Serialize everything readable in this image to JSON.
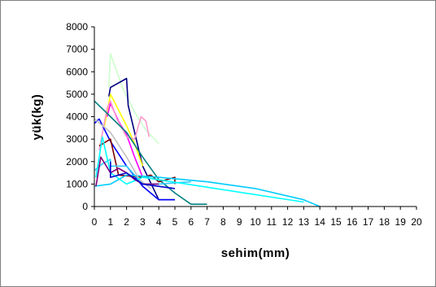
{
  "chart_data": {
    "type": "line",
    "title": "",
    "xlabel": "sehim(mm)",
    "ylabel": "yük(kg)",
    "xlim": [
      0,
      20
    ],
    "ylim": [
      0,
      8000
    ],
    "x_ticks": [
      "0",
      "1",
      "2",
      "3",
      "4",
      "5",
      "6",
      "7",
      "8",
      "9",
      "10",
      "11",
      "12",
      "13",
      "14",
      "15",
      "16",
      "17",
      "18",
      "19",
      "20"
    ],
    "y_ticks": [
      "0",
      "1000",
      "2000",
      "3000",
      "4000",
      "5000",
      "6000",
      "7000",
      "8000"
    ],
    "grid": false,
    "legend": "none",
    "series": [
      {
        "color": "#ccffcc",
        "x": [
          0.9,
          1.0,
          1.8,
          2.5,
          3.2,
          4.0
        ],
        "y": [
          5300,
          6800,
          5200,
          4200,
          3400,
          2800
        ]
      },
      {
        "color": "#000080",
        "x": [
          0.9,
          1.0,
          2.0,
          2.1,
          3.0,
          4.0,
          5.0
        ],
        "y": [
          4900,
          5300,
          5700,
          4500,
          1800,
          300,
          300
        ]
      },
      {
        "color": "#ffff00",
        "x": [
          0.6,
          1.0,
          1.5,
          2.0,
          2.5,
          3.0
        ],
        "y": [
          3500,
          5000,
          4300,
          3600,
          2800,
          1800
        ]
      },
      {
        "color": "#ff00ff",
        "x": [
          0.8,
          1.0,
          1.5,
          2.0,
          2.5,
          3.0
        ],
        "y": [
          4000,
          4600,
          3800,
          3200,
          2200,
          1300
        ]
      },
      {
        "color": "#ff99cc",
        "x": [
          0.3,
          0.8,
          1.0,
          1.4,
          2.0,
          2.5,
          2.9,
          3.2,
          3.4
        ],
        "y": [
          2500,
          4400,
          4700,
          3900,
          3100,
          3000,
          4000,
          3800,
          3100
        ]
      },
      {
        "color": "#008080",
        "x": [
          0.0,
          1.0,
          2.0,
          3.0,
          4.0,
          5.0,
          6.0,
          7.0
        ],
        "y": [
          4700,
          4000,
          3300,
          2200,
          1200,
          600,
          100,
          100
        ]
      },
      {
        "color": "#0000ff",
        "x": [
          0.0,
          0.3,
          1.0,
          2.0,
          3.0,
          4.0,
          5.0
        ],
        "y": [
          3700,
          3900,
          2900,
          1800,
          900,
          300,
          300
        ]
      },
      {
        "color": "#800000",
        "x": [
          0.3,
          1.0,
          1.5,
          3.0,
          3.5,
          4.0,
          5.0,
          5.0
        ],
        "y": [
          2700,
          3000,
          1400,
          1300,
          1400,
          1100,
          1300,
          1000
        ]
      },
      {
        "color": "#00ccff",
        "x": [
          0.0,
          1.0,
          2.0,
          4.0,
          7.0,
          10.0,
          13.0,
          14.0
        ],
        "y": [
          900,
          1000,
          1400,
          1300,
          1100,
          800,
          300,
          0
        ]
      },
      {
        "color": "#33ccff",
        "x": [
          0.0,
          0.5,
          1.0,
          1.0,
          2.0,
          3.0,
          4.0,
          6.0
        ],
        "y": [
          1600,
          1900,
          2100,
          1800,
          1800,
          1000,
          1000,
          1100
        ]
      },
      {
        "color": "#c0c0c0",
        "x": [
          0.0,
          1.0,
          2.0,
          2.8,
          3.5
        ],
        "y": [
          3900,
          3300,
          2200,
          1200,
          800
        ]
      },
      {
        "color": "#00ffff",
        "x": [
          0.1,
          0.5,
          1.0,
          2.0,
          3.0,
          13.0
        ],
        "y": [
          1300,
          3100,
          1500,
          1000,
          1300,
          200
        ]
      },
      {
        "color": "#800080",
        "x": [
          0.1,
          0.4,
          1.0,
          1.5,
          2.0,
          2.5,
          3.0,
          4.0
        ],
        "y": [
          900,
          2200,
          1500,
          1700,
          1500,
          1200,
          1000,
          1000
        ]
      },
      {
        "color": "#0000cc",
        "x": [
          1.0,
          1.0,
          2.0,
          3.0,
          5.0
        ],
        "y": [
          2000,
          1300,
          1500,
          1000,
          800
        ]
      }
    ]
  }
}
